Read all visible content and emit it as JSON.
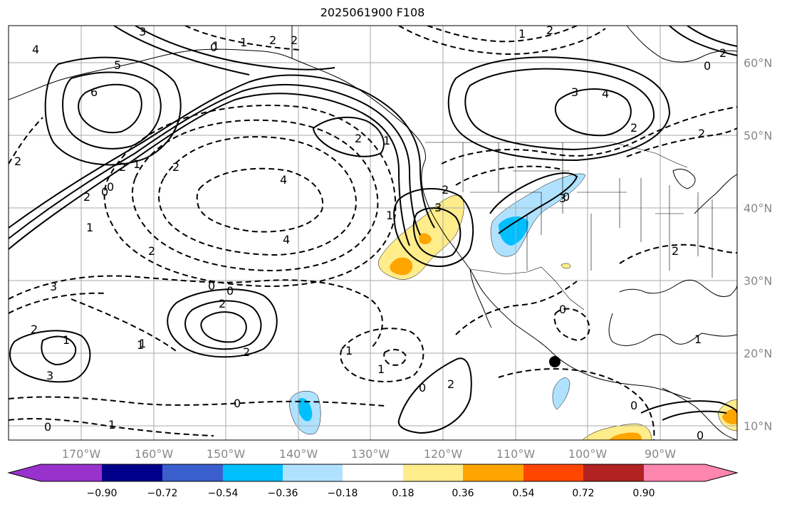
{
  "title": "2025061900 F108",
  "map": {
    "lon_range": [
      -180,
      -79
    ],
    "lat_range": [
      8,
      65
    ],
    "lon_ticks": [
      "170°W",
      "160°W",
      "150°W",
      "140°W",
      "130°W",
      "120°W",
      "110°W",
      "100°W",
      "90°W"
    ],
    "lat_ticks": [
      "10°N",
      "20°N",
      "30°N",
      "40°N",
      "50°N",
      "60°N"
    ],
    "grid": true
  },
  "colorbar": {
    "colors": [
      "#9932cc",
      "#00008b",
      "#3a5fcd",
      "#00bfff",
      "#b0e2ff",
      "#ffffff",
      "#ffec8b",
      "#ffa500",
      "#ff4500",
      "#b22222",
      "#ff86ae"
    ],
    "labels": [
      "−0.90",
      "−0.72",
      "−0.54",
      "−0.36",
      "−0.18",
      "0.18",
      "0.36",
      "0.54",
      "0.72",
      "0.90"
    ]
  },
  "contour_labels": [
    "6",
    "5",
    "4",
    "3",
    "2",
    "1",
    "0",
    "1",
    "2",
    "2",
    "3",
    "4",
    "2",
    "2",
    "0",
    "1",
    "2",
    "1",
    "3",
    "4",
    "2",
    "2",
    "0",
    "2",
    "2",
    "1",
    "1",
    "2",
    "4",
    "3",
    "2",
    "2",
    "3",
    "0",
    "0",
    "2",
    "2",
    "1",
    "1",
    "2",
    "0",
    "3",
    "1",
    "1",
    "0",
    "2",
    "0",
    "1",
    "0",
    "0",
    "1",
    "0",
    "0",
    "1",
    "2",
    "1",
    "0"
  ],
  "marker": {
    "label": "point marker"
  }
}
